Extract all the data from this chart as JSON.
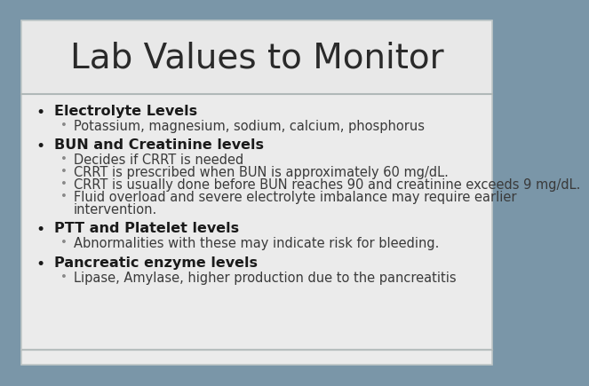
{
  "title": "Lab Values to Monitor",
  "bg_outer": "#7a96a8",
  "bg_title": "#e8e8e8",
  "bg_body": "#ebebeb",
  "border_color": "#c0c8c8",
  "separator_color": "#b0b8b8",
  "title_fontsize": 28,
  "title_color": "#2a2a2a",
  "bullet_fontsize": 11.5,
  "sub_fontsize": 10.5,
  "bullet_color": "#1a1a1a",
  "sub_color": "#3a3a3a",
  "sub_bullet_color": "#888888",
  "bold_bullets": [
    "Electrolyte Levels",
    "BUN and Creatinine levels",
    "PTT and Platelet levels",
    "Pancreatic enzyme levels"
  ],
  "sub_bullets": {
    "Electrolyte Levels": [
      "Potassium, magnesium, sodium, calcium, phosphorus"
    ],
    "BUN and Creatinine levels": [
      "Decides if CRRT is needed",
      "CRRT is prescribed when BUN is approximately 60 mg/dL.",
      "CRRT is usually done before BUN reaches 90 and creatinine exceeds 9 mg/dL.",
      "Fluid overload and severe electrolyte imbalance may require earlier\n    intervention."
    ],
    "PTT and Platelet levels": [
      "Abnormalities with these may indicate risk for bleeding."
    ],
    "Pancreatic enzyme levels": [
      "Lipase, Amylase, higher production due to the pancreatitis"
    ]
  }
}
